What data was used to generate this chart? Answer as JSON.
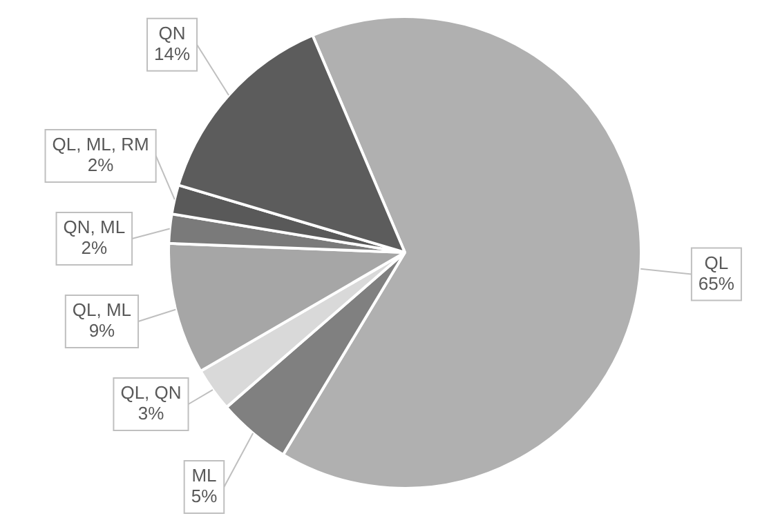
{
  "chart_data": {
    "type": "pie",
    "categories": [
      "QL",
      "ML",
      "QL, QN",
      "QL, ML",
      "QN, ML",
      "QL, ML, RM",
      "QN"
    ],
    "values": [
      65,
      5,
      3,
      9,
      2,
      2,
      14
    ],
    "colors": [
      "#b0b0b0",
      "#808080",
      "#d9d9d9",
      "#a6a6a6",
      "#7a7a7a",
      "#595959",
      "#5c5c5c"
    ],
    "value_labels": [
      "65%",
      "5%",
      "3%",
      "9%",
      "2%",
      "2%",
      "14%"
    ],
    "legend": false
  }
}
